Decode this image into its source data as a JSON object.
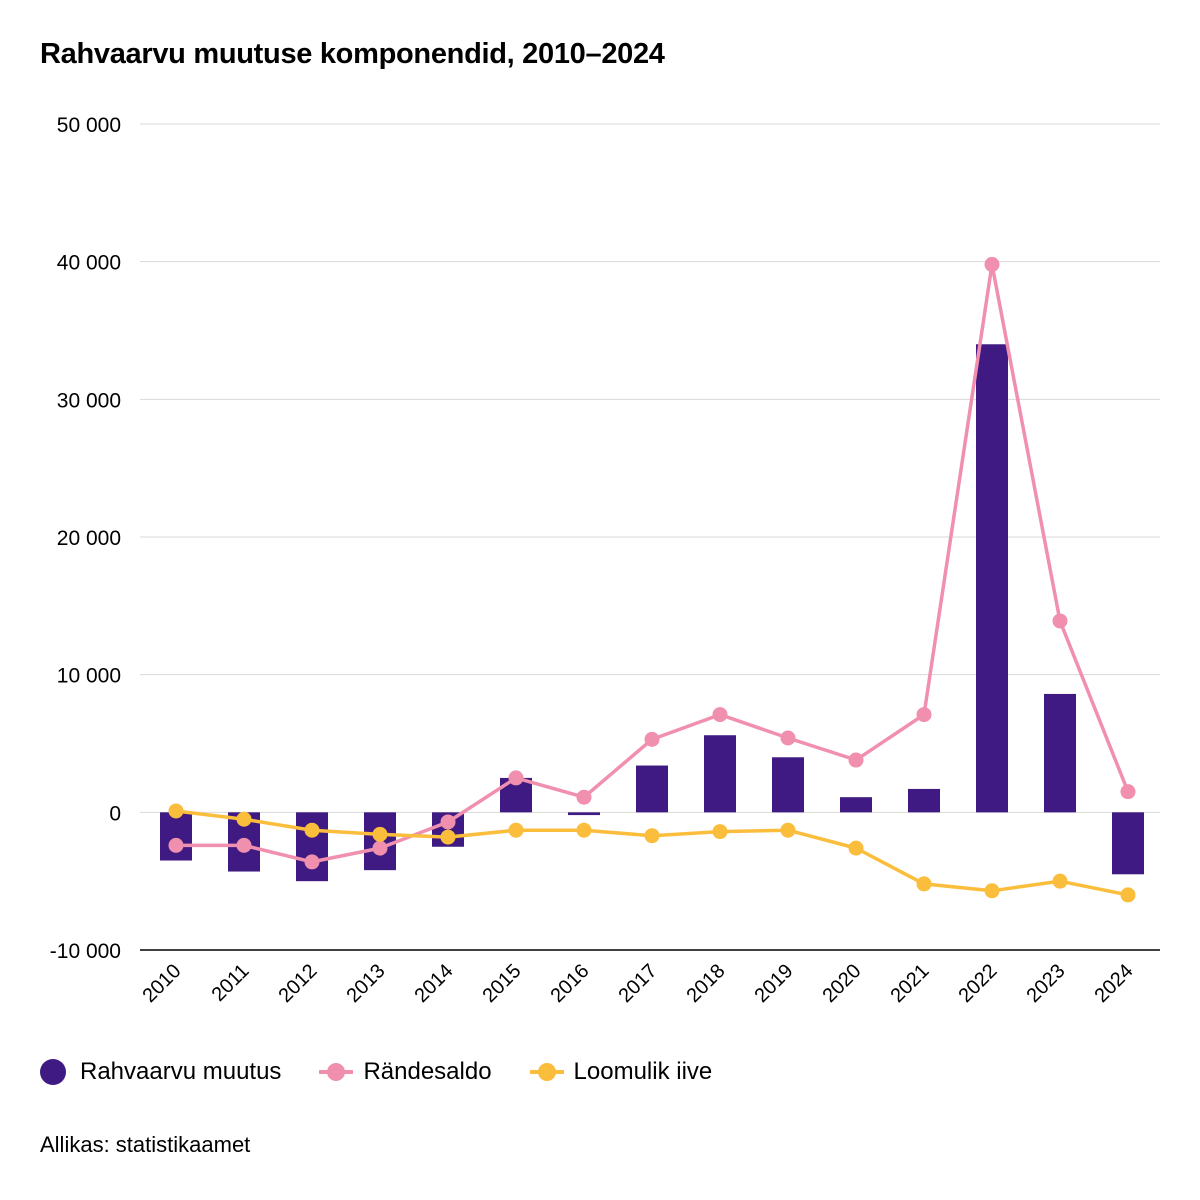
{
  "title": "Rahvaarvu muutuse komponendid, 2010–2024",
  "source": "Allikas: statistikaamet",
  "colors": {
    "bar": "#3e1a82",
    "migration": "#f08fae",
    "natural": "#fbbd3c",
    "grid": "#d9d9d9",
    "axis": "#000000"
  },
  "chart_data": {
    "type": "bar",
    "title": "Rahvaarvu muutuse komponendid, 2010–2024",
    "categories": [
      "2010",
      "2011",
      "2012",
      "2013",
      "2014",
      "2015",
      "2016",
      "2017",
      "2018",
      "2019",
      "2020",
      "2021",
      "2022",
      "2023",
      "2024"
    ],
    "ylim": [
      -10000,
      50000
    ],
    "yticks": [
      -10000,
      0,
      10000,
      20000,
      30000,
      40000,
      50000
    ],
    "ytick_labels": [
      "-10 000",
      "0",
      "10 000",
      "20 000",
      "30 000",
      "40 000",
      "50 000"
    ],
    "grid": true,
    "legend_position": "bottom-left",
    "series": [
      {
        "name": "Rahvaarvu muutus",
        "type": "bar",
        "color": "#3e1a82",
        "values": [
          -3500,
          -4300,
          -5000,
          -4200,
          -2500,
          2500,
          -200,
          3400,
          5600,
          4000,
          1100,
          1700,
          34000,
          8600,
          -4500
        ]
      },
      {
        "name": "Rändesaldo",
        "type": "line",
        "color": "#f08fae",
        "values": [
          -2400,
          -2400,
          -3600,
          -2600,
          -700,
          2500,
          1100,
          5300,
          7100,
          5400,
          3800,
          7100,
          39800,
          13900,
          1500
        ]
      },
      {
        "name": "Loomulik iive",
        "type": "line",
        "color": "#fbbd3c",
        "values": [
          100,
          -500,
          -1300,
          -1600,
          -1800,
          -1300,
          -1300,
          -1700,
          -1400,
          -1300,
          -2600,
          -5200,
          -5700,
          -5000,
          -6000
        ]
      }
    ]
  }
}
